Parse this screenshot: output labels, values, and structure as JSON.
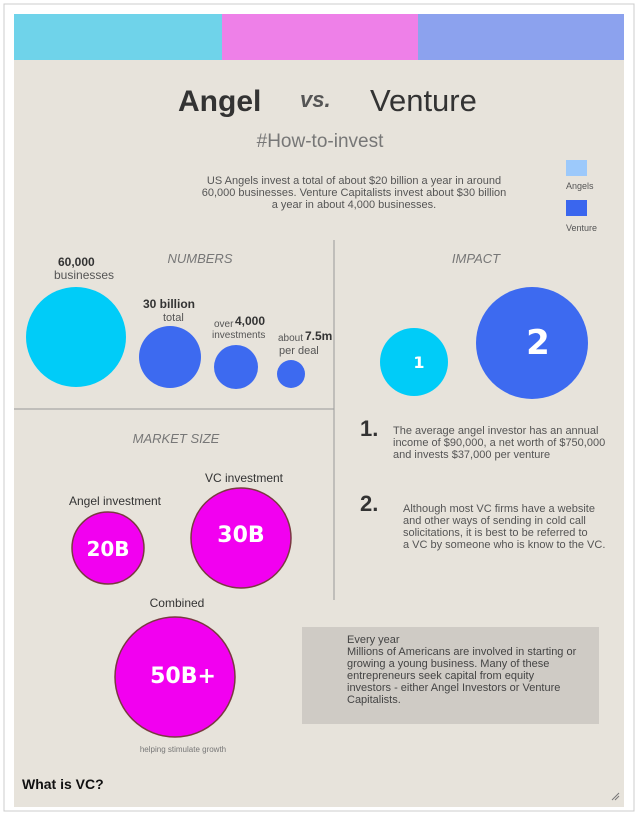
{
  "header": {
    "title_left": "Angel",
    "title_vs": "vs.",
    "title_right": "Venture",
    "subtitle": "#How-to-invest"
  },
  "intro": [
    "US Angels invest a total of about $20 billion a year in around",
    "60,000 businesses.  Venture Capitalists invest about $30 billion",
    "a year in about 4,000 businesses."
  ],
  "legend": [
    "Angels",
    "Venture"
  ],
  "numbers": {
    "heading": "NUMBERS",
    "items": [
      {
        "value": "60,000",
        "caption": "businesses"
      },
      {
        "value": "30 billion",
        "caption": "total"
      },
      {
        "prefix": "over",
        "value": "4,000",
        "caption": "investments"
      },
      {
        "prefix": "about",
        "value": "7.5m",
        "caption": "per deal"
      }
    ]
  },
  "impact": {
    "heading": "IMPACT",
    "circles": [
      "1",
      "2"
    ],
    "points": [
      {
        "number": "1.",
        "lines": [
          "The average angel investor has an annual",
          "income of $90,000, a net worth of $750,000",
          "and invests $37,000 per venture"
        ]
      },
      {
        "number": "2.",
        "lines": [
          "Although most VC firms have a website",
          "and other ways of sending in cold call",
          "solicitations, it is best to be referred to",
          "a VC by someone who is know to the VC."
        ]
      }
    ]
  },
  "market": {
    "heading": "MARKET SIZE",
    "items": [
      {
        "label": "Angel investment",
        "value": "20B"
      },
      {
        "label": "VC investment",
        "value": "30B"
      },
      {
        "label": "Combined",
        "value": "50B+"
      }
    ],
    "note": "helping stimulate growth"
  },
  "box": {
    "title": "Every year",
    "lines": [
      "Millions of Americans are involved in starting or",
      "growing a young business.  Many of these",
      "entrepreneurs seek capital from equity",
      "investors - either Angel Investors or Venture",
      "Capitalists."
    ]
  },
  "footer": "What is VC?"
}
